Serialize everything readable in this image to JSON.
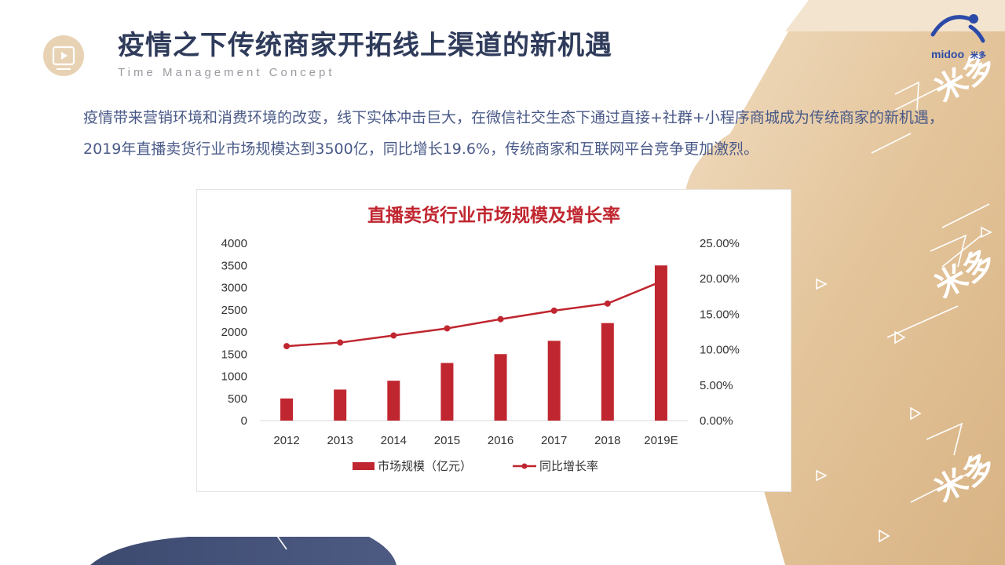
{
  "header": {
    "title": "疫情之下传统商家开拓线上渠道的新机遇",
    "subtitle": "Time Management Concept",
    "logo_text": "midoo",
    "logo_cn": "米多"
  },
  "intro": {
    "text": "疫情带来营销环境和消费环境的改变，线下实体冲击巨大，在微信社交生态下通过直接+社群+小程序商城成为传统商家的新机遇，2019年直播卖货行业市场规模达到3500亿，同比增长19.6%，传统商家和互联网平台竞争更加激烈。"
  },
  "decor": {
    "watermark_text": "米多"
  },
  "theme": {
    "navy": "#2f3b5a",
    "gold": "#e6c9a0",
    "bar_red": "#c0262f",
    "line_red": "#c0262f"
  },
  "chart_data": {
    "type": "bar",
    "title": "直播卖货行业市场规模及增长率",
    "categories": [
      "2012",
      "2013",
      "2014",
      "2015",
      "2016",
      "2017",
      "2018",
      "2019E"
    ],
    "series": [
      {
        "name": "市场规模（亿元）",
        "type": "bar",
        "axis": "left",
        "values": [
          500,
          700,
          900,
          1300,
          1500,
          1800,
          2200,
          3500
        ]
      },
      {
        "name": "同比增长率",
        "type": "line",
        "axis": "right",
        "values": [
          10.5,
          11.0,
          12.0,
          13.0,
          14.3,
          15.5,
          16.5,
          19.6
        ]
      }
    ],
    "y_left": {
      "min": 0,
      "max": 4000,
      "ticks": [
        "0",
        "500",
        "1000",
        "1500",
        "2000",
        "2500",
        "3000",
        "3500",
        "4000"
      ]
    },
    "y_right": {
      "min": 0,
      "max": 25,
      "ticks": [
        "0.00%",
        "5.00%",
        "10.00%",
        "15.00%",
        "20.00%",
        "25.00%"
      ]
    },
    "grid": false,
    "legend_position": "bottom"
  }
}
